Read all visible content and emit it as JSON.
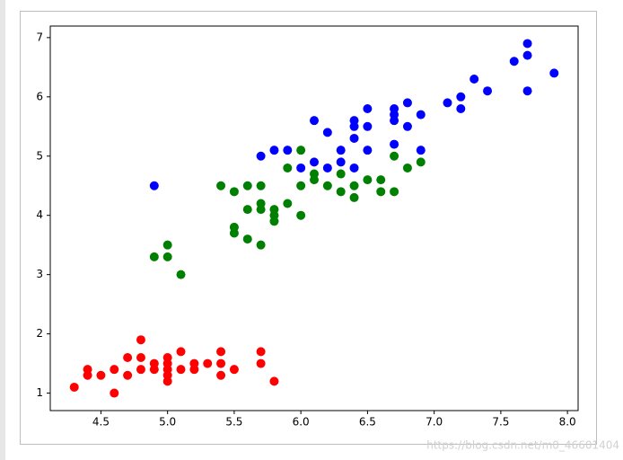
{
  "chart_data": {
    "type": "scatter",
    "series": [
      {
        "color": "#ff0000",
        "x": [
          4.3,
          4.4,
          4.4,
          4.5,
          4.6,
          4.6,
          4.7,
          4.7,
          4.8,
          4.8,
          4.8,
          4.9,
          4.9,
          5.0,
          5.0,
          5.0,
          5.0,
          5.0,
          5.1,
          5.1,
          5.2,
          5.2,
          5.3,
          5.4,
          5.4,
          5.4,
          5.5,
          5.7,
          5.7,
          5.8
        ],
        "values": [
          1.1,
          1.4,
          1.3,
          1.3,
          1.0,
          1.4,
          1.6,
          1.3,
          1.9,
          1.6,
          1.4,
          1.5,
          1.4,
          1.6,
          1.5,
          1.4,
          1.3,
          1.2,
          1.7,
          1.4,
          1.5,
          1.4,
          1.5,
          1.7,
          1.5,
          1.3,
          1.4,
          1.7,
          1.5,
          1.2
        ]
      },
      {
        "color": "#008000",
        "x": [
          4.9,
          5.0,
          5.0,
          5.1,
          5.4,
          5.5,
          5.5,
          5.5,
          5.6,
          5.6,
          5.6,
          5.7,
          5.7,
          5.7,
          5.7,
          5.8,
          5.8,
          5.8,
          5.9,
          5.9,
          6.0,
          6.0,
          6.0,
          6.1,
          6.1,
          6.2,
          6.3,
          6.3,
          6.4,
          6.4,
          6.5,
          6.6,
          6.6,
          6.7,
          6.7,
          6.8,
          6.9
        ],
        "values": [
          3.3,
          3.5,
          3.3,
          3.0,
          4.5,
          4.4,
          3.8,
          3.7,
          4.5,
          4.1,
          3.6,
          4.5,
          4.2,
          4.1,
          3.5,
          4.1,
          4.0,
          3.9,
          4.8,
          4.2,
          5.1,
          4.5,
          4.0,
          4.7,
          4.6,
          4.5,
          4.7,
          4.4,
          4.5,
          4.3,
          4.6,
          4.6,
          4.4,
          5.0,
          4.4,
          4.8,
          4.9
        ]
      },
      {
        "color": "#0000ff",
        "x": [
          4.9,
          5.7,
          5.8,
          5.9,
          6.0,
          6.1,
          6.1,
          6.2,
          6.2,
          6.3,
          6.3,
          6.4,
          6.4,
          6.4,
          6.4,
          6.5,
          6.5,
          6.5,
          6.7,
          6.7,
          6.7,
          6.7,
          6.8,
          6.8,
          6.9,
          6.9,
          7.1,
          7.2,
          7.2,
          7.3,
          7.4,
          7.6,
          7.7,
          7.7,
          7.7,
          7.9
        ],
        "values": [
          4.5,
          5.0,
          5.1,
          5.1,
          4.8,
          5.6,
          4.9,
          5.4,
          4.8,
          5.1,
          4.9,
          5.6,
          5.5,
          5.3,
          4.8,
          5.8,
          5.5,
          5.1,
          5.8,
          5.7,
          5.6,
          5.2,
          5.9,
          5.5,
          5.7,
          5.1,
          5.9,
          6.0,
          5.8,
          6.3,
          6.1,
          6.6,
          6.9,
          6.7,
          6.1,
          6.4
        ]
      }
    ],
    "xlim": [
      4.12,
      8.08
    ],
    "xticks": [
      4.5,
      {
        "value": 5,
        "label": "5.0"
      },
      5.5,
      {
        "value": 6,
        "label": "6.0"
      },
      6.5,
      {
        "value": 7,
        "label": "7.0"
      },
      7.5,
      {
        "value": 8,
        "label": "8.0"
      }
    ],
    "ylim": [
      0.705,
      7.195
    ],
    "yticks": [
      1,
      2,
      3,
      4,
      5,
      6,
      7
    ],
    "grid": false,
    "watermark": "https://blog.csdn.net/m0_46601404"
  }
}
